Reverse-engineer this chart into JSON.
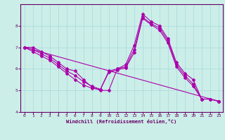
{
  "xlabel": "Windchill (Refroidissement éolien,°C)",
  "bg_color": "#cceee8",
  "line_color": "#aa00aa",
  "grid_color": "#aadddd",
  "axis_color": "#660066",
  "spine_color": "#660066",
  "xlim": [
    -0.5,
    23.5
  ],
  "ylim": [
    4,
    9
  ],
  "yticks": [
    4,
    5,
    6,
    7,
    8
  ],
  "xticks": [
    0,
    1,
    2,
    3,
    4,
    5,
    6,
    7,
    8,
    9,
    10,
    11,
    12,
    13,
    14,
    15,
    16,
    17,
    18,
    19,
    20,
    21,
    22,
    23
  ],
  "lines": [
    {
      "x": [
        0,
        1,
        2,
        3,
        4,
        5,
        6,
        7,
        8,
        9,
        10,
        11,
        12,
        13,
        14,
        15,
        16,
        17,
        18,
        19,
        20,
        21,
        22,
        23
      ],
      "y": [
        7.0,
        7.0,
        6.8,
        6.6,
        6.3,
        6.0,
        5.9,
        5.5,
        5.15,
        5.0,
        5.0,
        6.0,
        6.2,
        7.1,
        8.55,
        8.2,
        8.0,
        7.4,
        6.3,
        5.8,
        5.5,
        4.6,
        4.6,
        4.5
      ]
    },
    {
      "x": [
        0,
        1,
        2,
        3,
        4,
        5,
        6,
        7,
        8,
        9,
        10,
        11,
        12,
        13,
        14,
        15,
        16,
        17,
        18,
        19,
        20,
        21,
        22,
        23
      ],
      "y": [
        7.0,
        6.9,
        6.7,
        6.5,
        6.2,
        5.9,
        5.7,
        5.4,
        5.2,
        5.05,
        5.9,
        6.0,
        6.1,
        6.9,
        8.4,
        8.1,
        7.9,
        7.3,
        6.2,
        5.7,
        5.3,
        4.6,
        4.6,
        4.5
      ]
    },
    {
      "x": [
        0,
        1,
        2,
        3,
        4,
        5,
        6,
        7,
        8,
        9,
        10,
        11,
        12,
        13,
        14,
        15,
        16,
        17,
        18,
        19,
        20,
        21,
        22,
        23
      ],
      "y": [
        7.0,
        6.8,
        6.6,
        6.4,
        6.1,
        5.8,
        5.5,
        5.25,
        5.1,
        5.05,
        5.85,
        5.95,
        6.05,
        6.75,
        8.35,
        8.05,
        7.8,
        7.2,
        6.1,
        5.6,
        5.2,
        4.6,
        4.6,
        4.5
      ]
    },
    {
      "x": [
        0,
        23
      ],
      "y": [
        7.0,
        4.5
      ]
    }
  ]
}
